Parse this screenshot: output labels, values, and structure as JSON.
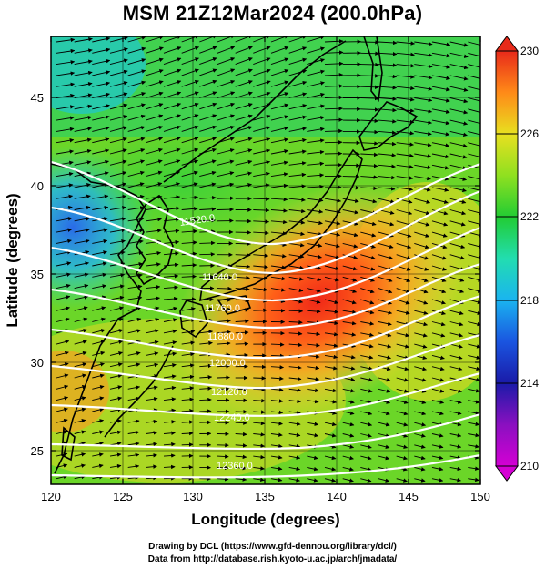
{
  "title": "MSM 21Z12Mar2024 (200.0hPa)",
  "map": {
    "xlabel": "Longitude (degrees)",
    "ylabel": "Latitude  (degrees)",
    "x_ticks": [
      "120",
      "125",
      "130",
      "135",
      "140",
      "145",
      "150"
    ],
    "y_ticks": [
      "25",
      "30",
      "35",
      "40",
      "45"
    ],
    "lon_range": [
      120,
      150
    ],
    "lat_range": [
      22.4,
      47.6
    ],
    "field": "temperature (K)",
    "vectors": "wind",
    "contour_labels": [
      "11520.0",
      "11640.0",
      "11760.0",
      "11880.0",
      "12000.0",
      "12120.0",
      "12240.0",
      "12360.0"
    ],
    "warm_core": {
      "lon": 139,
      "lat": 33.5
    }
  },
  "colorbar": {
    "ticks": [
      "230",
      "226",
      "222",
      "218",
      "214",
      "210"
    ],
    "min": 210,
    "max": 230,
    "colors": [
      "#d400d4",
      "#1a1aa8",
      "#1a55e0",
      "#1ab4f0",
      "#22ddb0",
      "#22cc33",
      "#8fe020",
      "#e8e020",
      "#ff8a18",
      "#e82a1a"
    ]
  },
  "credits": {
    "line1": "Drawing by DCL (https://www.gfd-dennou.org/library/dcl/)",
    "line2": "Data from http://database.rish.kyoto-u.ac.jp/arch/jmadata/"
  }
}
